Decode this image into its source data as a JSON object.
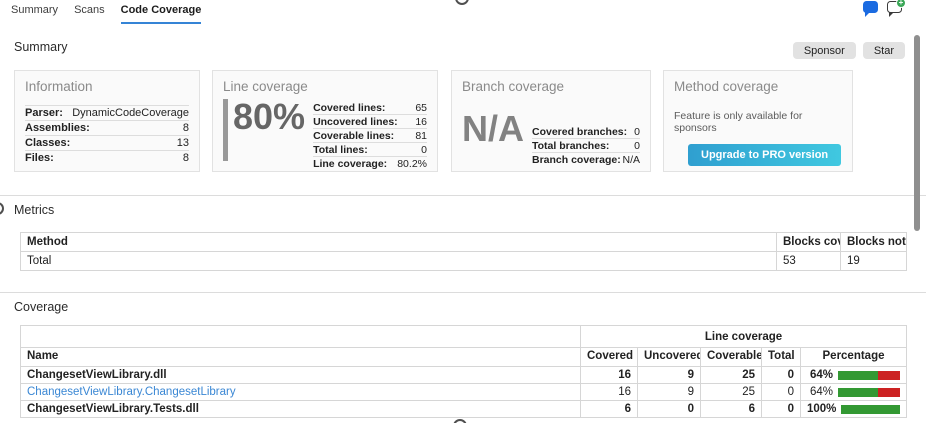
{
  "tabs": [
    {
      "label": "Summary"
    },
    {
      "label": "Scans"
    },
    {
      "label": "Code Coverage"
    }
  ],
  "toolbar": {
    "sponsor_label": "Sponsor",
    "star_label": "Star"
  },
  "icons": {
    "chat_filled": "chat-bubble-filled-icon",
    "chat_add": "chat-bubble-add-icon",
    "plus_glyph": "+"
  },
  "sections": {
    "summary": "Summary",
    "metrics": "Metrics",
    "coverage": "Coverage"
  },
  "cards": {
    "information": {
      "title": "Information",
      "rows": [
        {
          "label": "Parser:",
          "value": "DynamicCodeCoverage"
        },
        {
          "label": "Assemblies:",
          "value": "8"
        },
        {
          "label": "Classes:",
          "value": "13"
        },
        {
          "label": "Files:",
          "value": "8"
        }
      ]
    },
    "line_coverage": {
      "title": "Line coverage",
      "big_value": "80%",
      "rows": [
        {
          "label": "Covered lines:",
          "value": "65"
        },
        {
          "label": "Uncovered lines:",
          "value": "16"
        },
        {
          "label": "Coverable lines:",
          "value": "81"
        },
        {
          "label": "Total lines:",
          "value": "0"
        },
        {
          "label": "Line coverage:",
          "value": "80.2%"
        }
      ]
    },
    "branch_coverage": {
      "title": "Branch coverage",
      "big_value": "N/A",
      "rows": [
        {
          "label": "Covered branches:",
          "value": "0"
        },
        {
          "label": "Total branches:",
          "value": "0"
        },
        {
          "label": "Branch coverage:",
          "value": "N/A"
        }
      ]
    },
    "method_coverage": {
      "title": "Method coverage",
      "note": "Feature is only available for sponsors",
      "button_label": "Upgrade to PRO version"
    }
  },
  "metrics_table": {
    "columns": [
      "Method",
      "Blocks covered",
      "Blocks not covered"
    ],
    "rows": [
      {
        "method": "Total",
        "blocks_covered": "53",
        "blocks_not_covered": "19"
      }
    ]
  },
  "coverage_table": {
    "group_header": "Line coverage",
    "columns": [
      "Name",
      "Covered",
      "Uncovered",
      "Coverable",
      "Total",
      "Percentage"
    ],
    "rows": [
      {
        "name": "ChangesetViewLibrary.dll",
        "covered": "16",
        "uncovered": "9",
        "coverable": "25",
        "total": "0",
        "percentage": "64%",
        "pct": 64
      },
      {
        "name": "ChangesetViewLibrary.ChangesetLibrary",
        "covered": "16",
        "uncovered": "9",
        "coverable": "25",
        "total": "0",
        "percentage": "64%",
        "pct": 64
      },
      {
        "name": "ChangesetViewLibrary.Tests.dll",
        "covered": "6",
        "uncovered": "0",
        "coverable": "6",
        "total": "0",
        "percentage": "100%",
        "pct": 100
      }
    ]
  },
  "colors": {
    "accent_blue": "#3584d6",
    "link_blue": "#3a87d4",
    "bar_green": "#339933",
    "bar_red": "#cc2222",
    "button_gradient_start": "#2f9fd0",
    "button_gradient_end": "#40c8e0",
    "bubble_blue": "#1b6be1",
    "badge_green": "#3aa757"
  }
}
